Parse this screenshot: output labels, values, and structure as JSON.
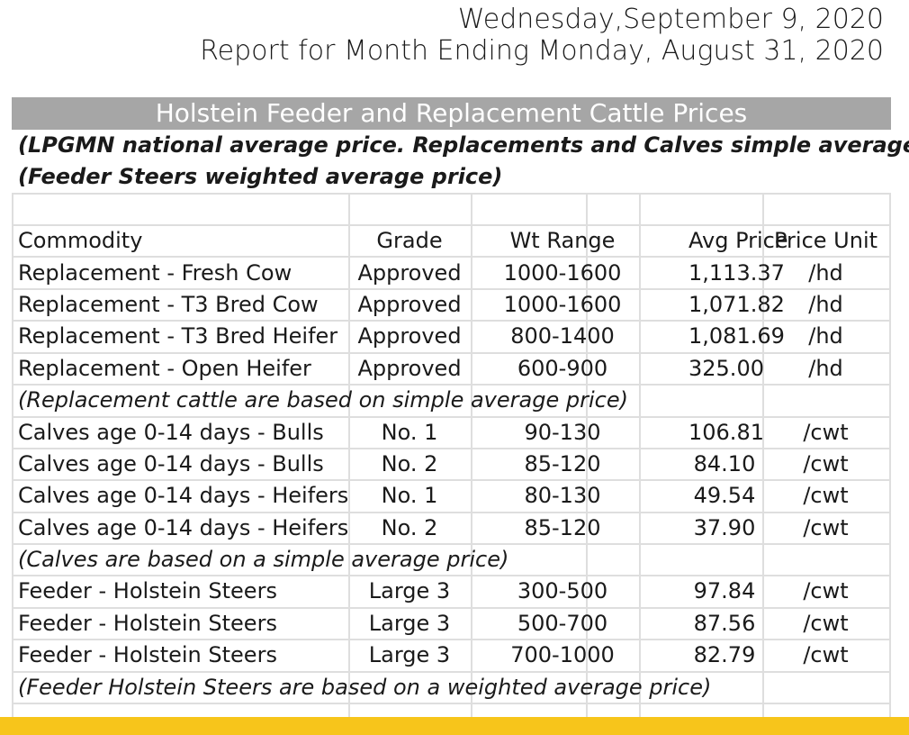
{
  "header": {
    "date": "Wednesday,September 9, 2020",
    "report_line": "Report for Month Ending Monday, August 31, 2020"
  },
  "title": "Holstein Feeder and Replacement Cattle Prices",
  "subtitles": [
    "(LPGMN national average price. Replacements and Calves simple average)",
    "(Feeder Steers weighted average price)"
  ],
  "columns": [
    "Commodity",
    "Grade",
    "Wt Range",
    "Avg Price",
    "Price Unit"
  ],
  "rows": [
    {
      "commodity": "Replacement - Fresh Cow",
      "grade": "Approved",
      "wt_range": "1000-1600",
      "avg_price": "1,113.37",
      "unit": "/hd"
    },
    {
      "commodity": "Replacement - T3 Bred Cow",
      "grade": "Approved",
      "wt_range": "1000-1600",
      "avg_price": "1,071.82",
      "unit": "/hd"
    },
    {
      "commodity": "Replacement - T3 Bred Heifer",
      "grade": "Approved",
      "wt_range": "800-1400",
      "avg_price": "1,081.69",
      "unit": "/hd"
    },
    {
      "commodity": "Replacement - Open Heifer",
      "grade": "Approved",
      "wt_range": "600-900",
      "avg_price": "325.00",
      "unit": "/hd"
    },
    {
      "note": "(Replacement cattle are based on simple average price)"
    },
    {
      "commodity": "Calves age 0-14 days - Bulls",
      "grade": "No. 1",
      "wt_range": "90-130",
      "avg_price": "106.81",
      "unit": "/cwt"
    },
    {
      "commodity": "Calves age 0-14 days - Bulls",
      "grade": "No. 2",
      "wt_range": "85-120",
      "avg_price": "84.10",
      "unit": "/cwt"
    },
    {
      "commodity": "Calves age 0-14 days - Heifers",
      "grade": "No. 1",
      "wt_range": "80-130",
      "avg_price": "49.54",
      "unit": "/cwt"
    },
    {
      "commodity": "Calves age 0-14 days - Heifers",
      "grade": "No. 2",
      "wt_range": "85-120",
      "avg_price": "37.90",
      "unit": "/cwt"
    },
    {
      "note": "(Calves are based on a simple average price)"
    },
    {
      "commodity": "Feeder - Holstein Steers",
      "grade": "Large 3",
      "wt_range": "300-500",
      "avg_price": "97.84",
      "unit": "/cwt"
    },
    {
      "commodity": "Feeder - Holstein Steers",
      "grade": "Large 3",
      "wt_range": "500-700",
      "avg_price": "87.56",
      "unit": "/cwt"
    },
    {
      "commodity": "Feeder - Holstein Steers",
      "grade": "Large 3",
      "wt_range": "700-1000",
      "avg_price": "82.79",
      "unit": "/cwt"
    },
    {
      "note": "(Feeder Holstein Steers are based on a weighted average price)"
    }
  ],
  "colors": {
    "title_bar": "#a6a6a6",
    "grid_line": "#dedede",
    "footer_bar": "#f7c51b"
  }
}
